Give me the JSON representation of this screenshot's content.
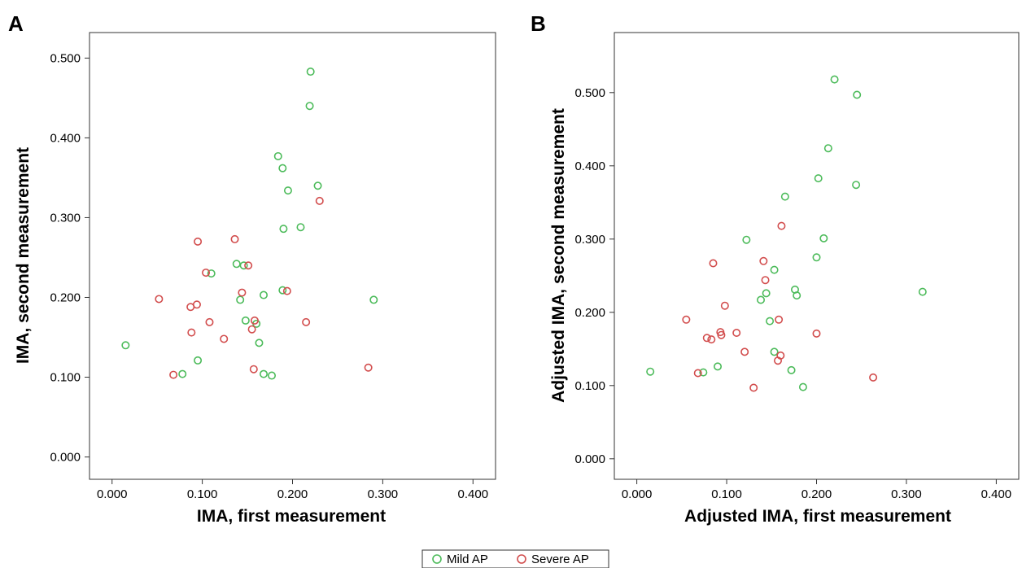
{
  "legend": {
    "items": [
      {
        "label": "Mild AP",
        "color": "#4cbb5a"
      },
      {
        "label": "Severe AP",
        "color": "#d24d4d"
      }
    ]
  },
  "chart_data": [
    {
      "type": "scatter",
      "panel": "A",
      "xlabel": "IMA, first measurement",
      "ylabel": "IMA, second measurement",
      "xlim": [
        -0.025,
        0.425
      ],
      "ylim": [
        -0.028,
        0.532
      ],
      "xticks": [
        0.0,
        0.1,
        0.2,
        0.3,
        0.4
      ],
      "xtick_labels": [
        "0.000",
        "0.100",
        "0.200",
        "0.300",
        "0.400"
      ],
      "yticks": [
        0.0,
        0.1,
        0.2,
        0.3,
        0.4,
        0.5
      ],
      "ytick_labels": [
        "0.000",
        "0.100",
        "0.200",
        "0.300",
        "0.400",
        "0.500"
      ],
      "grid": false,
      "series": [
        {
          "name": "Mild AP",
          "color": "#4cbb5a",
          "points": [
            [
              0.015,
              0.14
            ],
            [
              0.078,
              0.104
            ],
            [
              0.095,
              0.121
            ],
            [
              0.11,
              0.23
            ],
            [
              0.138,
              0.242
            ],
            [
              0.142,
              0.197
            ],
            [
              0.146,
              0.24
            ],
            [
              0.148,
              0.171
            ],
            [
              0.16,
              0.167
            ],
            [
              0.163,
              0.143
            ],
            [
              0.168,
              0.203
            ],
            [
              0.168,
              0.104
            ],
            [
              0.177,
              0.102
            ],
            [
              0.184,
              0.377
            ],
            [
              0.189,
              0.362
            ],
            [
              0.189,
              0.209
            ],
            [
              0.19,
              0.286
            ],
            [
              0.195,
              0.334
            ],
            [
              0.209,
              0.288
            ],
            [
              0.219,
              0.44
            ],
            [
              0.22,
              0.483
            ],
            [
              0.228,
              0.34
            ],
            [
              0.29,
              0.197
            ]
          ]
        },
        {
          "name": "Severe AP",
          "color": "#d24d4d",
          "points": [
            [
              0.052,
              0.198
            ],
            [
              0.068,
              0.103
            ],
            [
              0.087,
              0.188
            ],
            [
              0.088,
              0.156
            ],
            [
              0.094,
              0.191
            ],
            [
              0.095,
              0.27
            ],
            [
              0.104,
              0.231
            ],
            [
              0.108,
              0.169
            ],
            [
              0.124,
              0.148
            ],
            [
              0.136,
              0.273
            ],
            [
              0.144,
              0.206
            ],
            [
              0.151,
              0.24
            ],
            [
              0.155,
              0.16
            ],
            [
              0.157,
              0.11
            ],
            [
              0.158,
              0.171
            ],
            [
              0.194,
              0.208
            ],
            [
              0.215,
              0.169
            ],
            [
              0.23,
              0.321
            ],
            [
              0.284,
              0.112
            ]
          ]
        }
      ]
    },
    {
      "type": "scatter",
      "panel": "B",
      "xlabel": "Adjusted IMA, first measurement",
      "ylabel": "Adjusted IMA, second measurement",
      "xlim": [
        -0.025,
        0.425
      ],
      "ylim": [
        -0.028,
        0.582
      ],
      "xticks": [
        0.0,
        0.1,
        0.2,
        0.3,
        0.4
      ],
      "xtick_labels": [
        "0.000",
        "0.100",
        "0.200",
        "0.300",
        "0.400"
      ],
      "yticks": [
        0.0,
        0.1,
        0.2,
        0.3,
        0.4,
        0.5
      ],
      "ytick_labels": [
        "0.000",
        "0.100",
        "0.200",
        "0.300",
        "0.400",
        "0.500"
      ],
      "grid": false,
      "series": [
        {
          "name": "Mild AP",
          "color": "#4cbb5a",
          "points": [
            [
              0.015,
              0.119
            ],
            [
              0.074,
              0.118
            ],
            [
              0.09,
              0.126
            ],
            [
              0.122,
              0.299
            ],
            [
              0.138,
              0.217
            ],
            [
              0.144,
              0.226
            ],
            [
              0.148,
              0.188
            ],
            [
              0.153,
              0.258
            ],
            [
              0.153,
              0.146
            ],
            [
              0.165,
              0.358
            ],
            [
              0.172,
              0.121
            ],
            [
              0.176,
              0.231
            ],
            [
              0.178,
              0.223
            ],
            [
              0.185,
              0.098
            ],
            [
              0.2,
              0.275
            ],
            [
              0.202,
              0.383
            ],
            [
              0.208,
              0.301
            ],
            [
              0.213,
              0.424
            ],
            [
              0.22,
              0.518
            ],
            [
              0.244,
              0.374
            ],
            [
              0.245,
              0.497
            ],
            [
              0.318,
              0.228
            ]
          ]
        },
        {
          "name": "Severe AP",
          "color": "#d24d4d",
          "points": [
            [
              0.055,
              0.19
            ],
            [
              0.068,
              0.117
            ],
            [
              0.078,
              0.165
            ],
            [
              0.083,
              0.163
            ],
            [
              0.085,
              0.267
            ],
            [
              0.093,
              0.173
            ],
            [
              0.094,
              0.169
            ],
            [
              0.098,
              0.209
            ],
            [
              0.111,
              0.172
            ],
            [
              0.12,
              0.146
            ],
            [
              0.13,
              0.097
            ],
            [
              0.141,
              0.27
            ],
            [
              0.143,
              0.244
            ],
            [
              0.157,
              0.134
            ],
            [
              0.158,
              0.19
            ],
            [
              0.16,
              0.141
            ],
            [
              0.161,
              0.318
            ],
            [
              0.2,
              0.171
            ],
            [
              0.263,
              0.111
            ]
          ]
        }
      ]
    }
  ]
}
